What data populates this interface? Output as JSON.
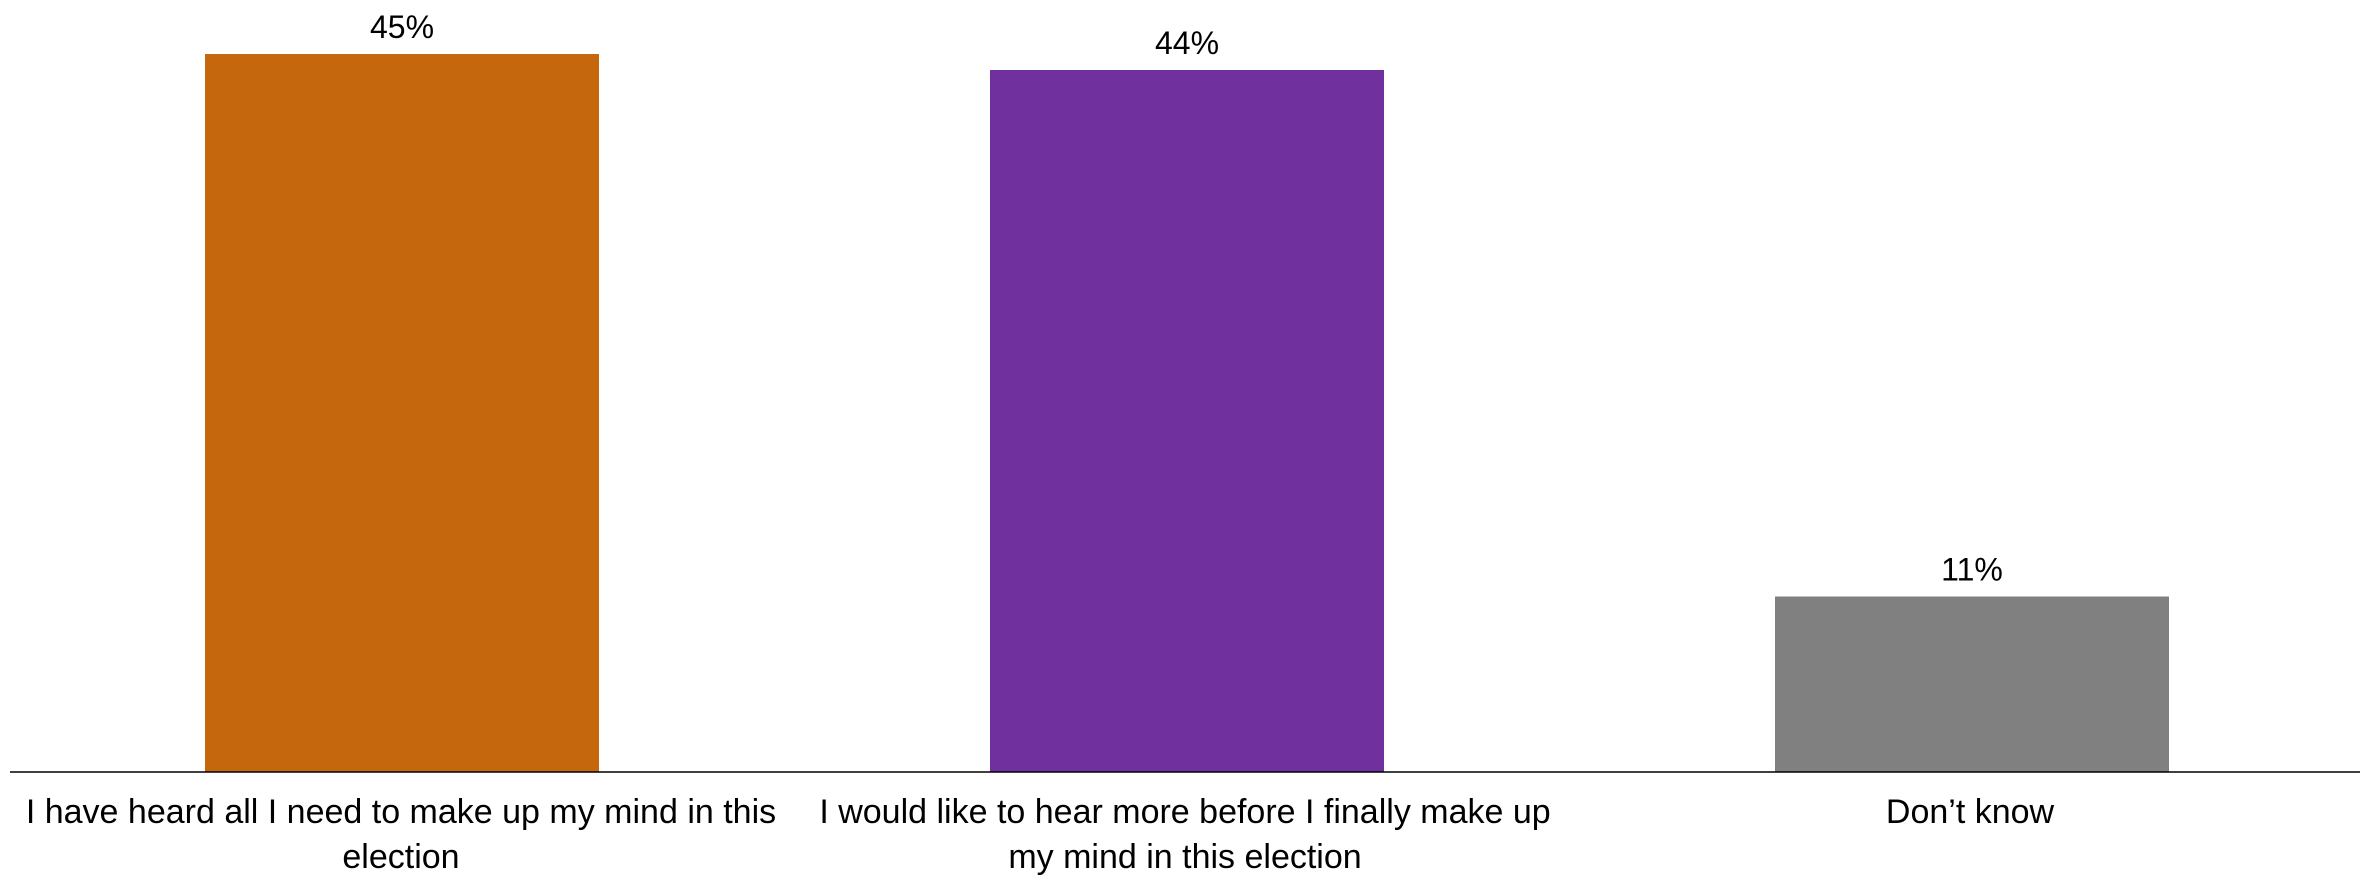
{
  "chart_data": {
    "type": "bar",
    "categories": [
      "I have heard all I need to make up my mind in this election",
      "I would like to hear more before I finally make up my mind in this election",
      "Don’t know"
    ],
    "values": [
      45,
      44,
      11
    ],
    "data_labels": [
      "45%",
      "44%",
      "11%"
    ],
    "colors": [
      "#C5670D",
      "#70309E",
      "#808080"
    ],
    "ylim": [
      0,
      45
    ],
    "grid": false,
    "legend": "none",
    "title": "",
    "xlabel": "",
    "ylabel": ""
  }
}
